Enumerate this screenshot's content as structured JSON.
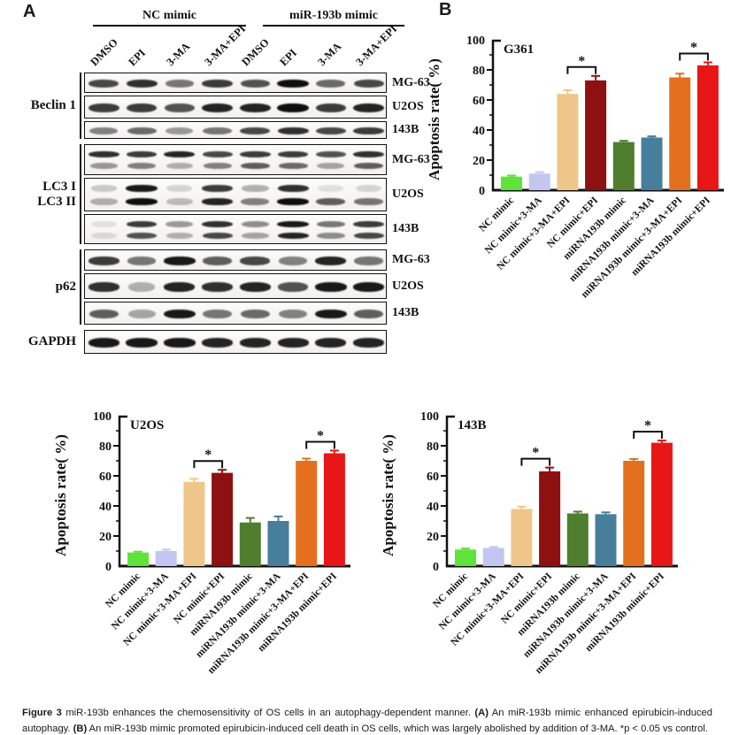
{
  "panel_a": {
    "label": "A",
    "group_headers": [
      "NC mimic",
      "miR-193b mimic"
    ],
    "lane_labels": [
      "DMSO",
      "EPI",
      "3-MA",
      "3-MA+EPI",
      "DMSO",
      "EPI",
      "3-MA",
      "3-MA+EPI"
    ],
    "rows": [
      {
        "protein": "Beclin 1",
        "blots": [
          {
            "cell_line": "MG-63",
            "height": 23,
            "bands": [
              [
                0.75,
                0.85,
                0.55,
                0.8,
                0.7,
                1,
                0.6,
                0.75
              ]
            ]
          },
          {
            "cell_line": "U2OS",
            "height": 26,
            "bands": [
              [
                0.8,
                0.8,
                0.7,
                0.9,
                0.9,
                1,
                0.8,
                0.9
              ]
            ]
          },
          {
            "cell_line": "143B",
            "height": 20,
            "bands": [
              [
                0.5,
                0.6,
                0.4,
                0.55,
                0.75,
                0.85,
                0.75,
                0.8
              ]
            ]
          }
        ]
      },
      {
        "protein": "LC3 I\nLC3 II",
        "blots": [
          {
            "cell_line": "MG-63",
            "height": 35,
            "bands": [
              [
                0.85,
                0.8,
                0.9,
                0.75,
                0.8,
                0.8,
                0.7,
                0.85
              ],
              [
                0.4,
                0.5,
                0.3,
                0.5,
                0.65,
                0.6,
                0.35,
                0.65
              ]
            ]
          },
          {
            "cell_line": "U2OS",
            "height": 38,
            "bands": [
              [
                0.2,
                0.95,
                0.15,
                0.8,
                0.3,
                0.85,
                0.1,
                0.15
              ],
              [
                0.3,
                1,
                0.25,
                0.9,
                0.5,
                1,
                0.65,
                0.55
              ]
            ]
          },
          {
            "cell_line": "143B",
            "height": 34,
            "bands": [
              [
                0.1,
                0.8,
                0.4,
                0.85,
                0.45,
                0.95,
                0.55,
                0.8
              ],
              [
                0.12,
                0.7,
                0.3,
                0.75,
                0.35,
                0.9,
                0.45,
                0.75
              ]
            ]
          }
        ]
      },
      {
        "protein": "p62",
        "blots": [
          {
            "cell_line": "MG-63",
            "height": 24,
            "bands": [
              [
                0.8,
                0.55,
                0.95,
                0.65,
                0.75,
                0.5,
                0.9,
                0.55
              ]
            ]
          },
          {
            "cell_line": "U2OS",
            "height": 29,
            "bands": [
              [
                0.85,
                0.3,
                0.9,
                0.85,
                0.9,
                0.7,
                0.95,
                0.95
              ]
            ]
          },
          {
            "cell_line": "143B",
            "height": 26,
            "bands": [
              [
                0.65,
                0.35,
                0.95,
                0.55,
                0.6,
                0.5,
                0.95,
                0.65
              ]
            ]
          }
        ]
      },
      {
        "protein": "GAPDH",
        "blots": [
          {
            "cell_line": "",
            "height": 27,
            "bands": [
              [
                0.95,
                0.95,
                0.95,
                0.9,
                0.9,
                0.9,
                0.9,
                0.9
              ]
            ]
          }
        ]
      }
    ]
  },
  "panel_b": {
    "label": "B"
  },
  "bar_colors": [
    "#5fe23a",
    "#c3c6f0",
    "#efc689",
    "#8e1011",
    "#4e7e2e",
    "#477e9b",
    "#e4701f",
    "#e81616"
  ],
  "chart_data": [
    {
      "type": "bar",
      "title": "G361",
      "ylabel": "Apoptosis rate( %)",
      "ylim": [
        0,
        100
      ],
      "yticks": [
        0,
        20,
        40,
        60,
        80,
        100
      ],
      "grid": false,
      "categories": [
        "NC mimic",
        "NC mimic+3-MA",
        "NC mimic+3-MA+EPI",
        "NC mimic+EPI",
        "miRNA193b mimic",
        "miRNA193b mimic+3-MA",
        "miRNA193b mimic+3-MA+EPI",
        "miRNA193b mimic+EPI"
      ],
      "values": [
        9,
        11,
        64,
        73,
        32,
        35,
        75,
        83
      ],
      "errors": [
        0.7,
        1,
        2.5,
        3,
        0.8,
        0.8,
        2.5,
        2
      ],
      "significance": [
        {
          "pair": [
            2,
            3
          ],
          "label": "*"
        },
        {
          "pair": [
            6,
            7
          ],
          "label": "*"
        }
      ]
    },
    {
      "type": "bar",
      "title": "U2OS",
      "ylabel": "Apoptosis rate( %)",
      "ylim": [
        0,
        100
      ],
      "yticks": [
        0,
        20,
        40,
        60,
        80,
        100
      ],
      "grid": false,
      "categories": [
        "NC mimic",
        "NC mimic+3-MA",
        "NC mimic+3-MA+EPI",
        "NC mimic+EPI",
        "miRNA193b mimic",
        "miRNA193b mimic+3-MA",
        "miRNA193b mimic+3-MA+EPI",
        "miRNA193b mimic+EPI"
      ],
      "values": [
        9,
        10,
        56,
        62,
        29,
        30,
        70,
        75
      ],
      "errors": [
        0.6,
        1,
        2,
        2,
        3,
        3,
        1.5,
        1.8
      ],
      "significance": [
        {
          "pair": [
            2,
            3
          ],
          "label": "*"
        },
        {
          "pair": [
            6,
            7
          ],
          "label": "*"
        }
      ]
    },
    {
      "type": "bar",
      "title": "143B",
      "ylabel": "Apoptosis rate( %)",
      "ylim": [
        0,
        100
      ],
      "yticks": [
        0,
        20,
        40,
        60,
        80,
        100
      ],
      "grid": false,
      "categories": [
        "NC mimic",
        "NC mimic+3-MA",
        "NC mimic+3-MA+EPI",
        "NC mimic+EPI",
        "miRNA193b mimic",
        "miRNA193b mimic+3-MA",
        "miRNA193b mimic+3-MA+EPI",
        "miRNA193b mimic+EPI"
      ],
      "values": [
        11,
        12,
        38,
        63,
        35,
        34.5,
        70,
        82
      ],
      "errors": [
        0.7,
        0.7,
        1.5,
        2.5,
        1.2,
        1.2,
        1.2,
        1.5
      ],
      "significance": [
        {
          "pair": [
            2,
            3
          ],
          "label": "*"
        },
        {
          "pair": [
            6,
            7
          ],
          "label": "*"
        }
      ]
    }
  ],
  "caption": {
    "segments": [
      {
        "text": "Figure 3 ",
        "bold": true
      },
      {
        "text": "miR-193b enhances the chemosensitivity of OS cells in an autophagy-dependent manner. ",
        "bold": false
      },
      {
        "text": "(A)",
        "bold": true
      },
      {
        "text": " An miR-193b mimic enhanced epirubicin-induced autophagy. ",
        "bold": false
      },
      {
        "text": "(B)",
        "bold": true
      },
      {
        "text": " An miR-193b mimic promoted epirubicin-induced cell death in OS cells, which was largely abolished by addition of 3-MA. *p < 0.05 vs control.",
        "bold": false
      }
    ]
  }
}
